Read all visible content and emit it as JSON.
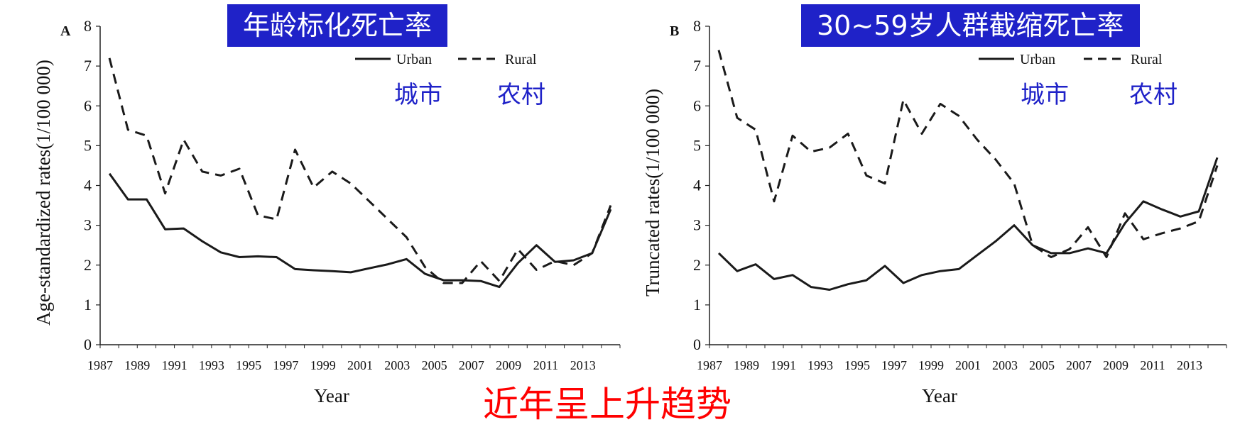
{
  "annotation": "近年呈上升趋势",
  "chart_data": [
    {
      "type": "line",
      "panel_label": "A",
      "title": "年龄标化死亡率",
      "xlabel": "Year",
      "ylabel": "Age-standardized rates(1/100 000)",
      "xlim": [
        1987,
        2015
      ],
      "ylim": [
        0,
        8
      ],
      "x_ticks": [
        "1987",
        "1989",
        "1991",
        "1993",
        "1995",
        "1997",
        "1999",
        "2001",
        "2003",
        "2005",
        "2007",
        "2009",
        "2011",
        "2013"
      ],
      "y_ticks": [
        "0",
        "1",
        "2",
        "3",
        "4",
        "5",
        "6",
        "7",
        "8"
      ],
      "legend": {
        "urban": "Urban",
        "rural": "Rural",
        "urban_cn": "城市",
        "rural_cn": "农村"
      },
      "x": [
        1987.5,
        1988.5,
        1989.5,
        1990.5,
        1991.5,
        1992.5,
        1993.5,
        1994.5,
        1995.5,
        1996.5,
        1997.5,
        1998.5,
        1999.5,
        2000.5,
        2001.5,
        2002.5,
        2003.5,
        2004.5,
        2005.5,
        2006.5,
        2007.5,
        2008.5,
        2009.5,
        2010.5,
        2011.5,
        2012.5,
        2013.5,
        2014.5
      ],
      "series": [
        {
          "name": "Urban",
          "style": "solid",
          "values": [
            4.3,
            3.65,
            3.65,
            2.9,
            2.92,
            2.6,
            2.32,
            2.2,
            2.22,
            2.2,
            1.9,
            1.87,
            1.85,
            1.82,
            1.92,
            2.02,
            2.15,
            1.78,
            1.62,
            1.62,
            1.6,
            1.45,
            2.05,
            2.5,
            2.08,
            2.12,
            2.3,
            3.4
          ]
        },
        {
          "name": "Rural",
          "style": "dashed",
          "values": [
            7.2,
            5.4,
            5.25,
            3.8,
            5.15,
            4.35,
            4.25,
            4.42,
            3.25,
            3.15,
            4.9,
            3.95,
            4.35,
            4.05,
            3.6,
            3.15,
            2.7,
            1.95,
            1.55,
            1.55,
            2.1,
            1.6,
            2.4,
            1.88,
            2.1,
            2.0,
            2.3,
            3.5
          ]
        }
      ]
    },
    {
      "type": "line",
      "panel_label": "B",
      "title": "30~59岁人群截缩死亡率",
      "xlabel": "Year",
      "ylabel": "Truncated rates(1/100 000)",
      "xlim": [
        1987,
        2015
      ],
      "ylim": [
        0,
        8
      ],
      "x_ticks": [
        "1987",
        "1989",
        "1991",
        "1993",
        "1995",
        "1997",
        "1999",
        "2001",
        "2003",
        "2005",
        "2007",
        "2009",
        "2011",
        "2013"
      ],
      "y_ticks": [
        "0",
        "1",
        "2",
        "3",
        "4",
        "5",
        "6",
        "7",
        "8"
      ],
      "legend": {
        "urban": "Urban",
        "rural": "Rural",
        "urban_cn": "城市",
        "rural_cn": "农村"
      },
      "x": [
        1987.5,
        1988.5,
        1989.5,
        1990.5,
        1991.5,
        1992.5,
        1993.5,
        1994.5,
        1995.5,
        1996.5,
        1997.5,
        1998.5,
        1999.5,
        2000.5,
        2001.5,
        2002.5,
        2003.5,
        2004.5,
        2005.5,
        2006.5,
        2007.5,
        2008.5,
        2009.5,
        2010.5,
        2011.5,
        2012.5,
        2013.5,
        2014.5
      ],
      "series": [
        {
          "name": "Urban",
          "style": "solid",
          "values": [
            2.3,
            1.85,
            2.02,
            1.65,
            1.75,
            1.45,
            1.38,
            1.52,
            1.62,
            1.98,
            1.55,
            1.75,
            1.85,
            1.9,
            2.25,
            2.6,
            3.0,
            2.5,
            2.3,
            2.3,
            2.42,
            2.3,
            3.05,
            3.6,
            3.4,
            3.22,
            3.35,
            4.7
          ]
        },
        {
          "name": "Rural",
          "style": "dashed",
          "values": [
            7.4,
            5.7,
            5.4,
            3.6,
            5.25,
            4.85,
            4.95,
            5.3,
            4.25,
            4.05,
            6.15,
            5.3,
            6.05,
            5.75,
            5.15,
            4.65,
            4.05,
            2.5,
            2.2,
            2.4,
            2.95,
            2.2,
            3.3,
            2.65,
            2.8,
            2.92,
            3.1,
            4.5
          ]
        }
      ]
    }
  ]
}
